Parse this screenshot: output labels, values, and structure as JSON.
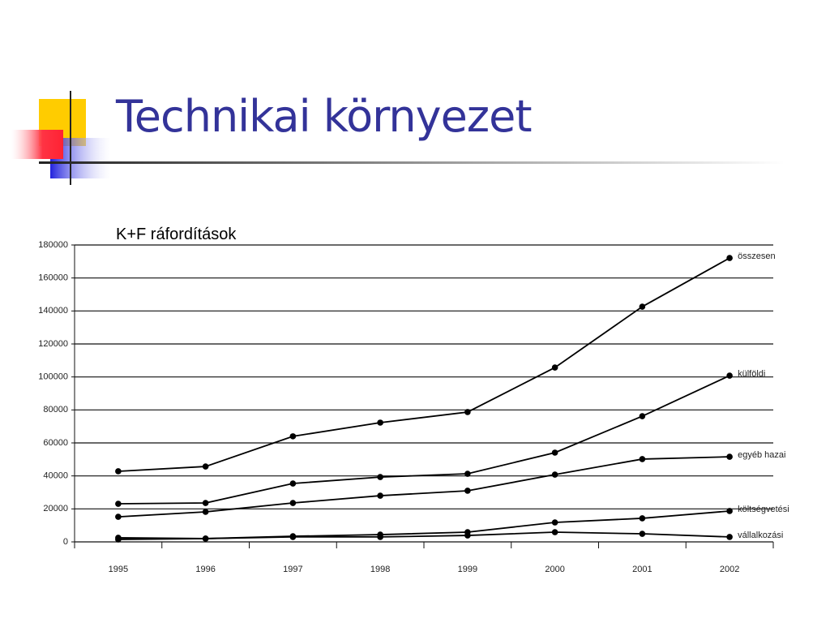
{
  "title": "Technikai környezet",
  "chart_data": {
    "type": "line",
    "title": "K+F ráfordítások",
    "categories": [
      "1995",
      "1996",
      "1997",
      "1998",
      "1999",
      "2000",
      "2001",
      "2002"
    ],
    "series": [
      {
        "name": "összesen",
        "color": "#000000",
        "values": [
          42800,
          45700,
          64000,
          72300,
          78700,
          105700,
          142600,
          172100
        ]
      },
      {
        "name": "külföldi",
        "color": "#000000",
        "values": [
          23100,
          23600,
          35400,
          39300,
          41300,
          54100,
          76200,
          100800
        ]
      },
      {
        "name": "egyéb hazai",
        "color": "#000000",
        "values": [
          15200,
          18200,
          23600,
          28000,
          31000,
          40800,
          50200,
          51600
        ]
      },
      {
        "name": "költségvetési",
        "color": "#000000",
        "values": [
          2500,
          2000,
          3400,
          4400,
          5900,
          11800,
          14300,
          18700
        ]
      },
      {
        "name": "vállalkozási",
        "color": "#000000",
        "values": [
          1500,
          2000,
          3000,
          3000,
          3900,
          5900,
          4900,
          3000
        ]
      }
    ],
    "ylim": [
      0,
      180000
    ],
    "yticks": [
      0,
      20000,
      40000,
      60000,
      80000,
      100000,
      120000,
      140000,
      160000,
      180000
    ],
    "grid": true
  }
}
